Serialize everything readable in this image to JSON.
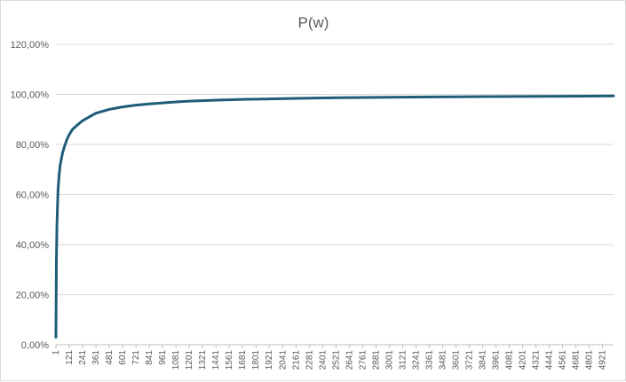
{
  "chart_data": {
    "type": "line",
    "title": "P(w)",
    "xlabel": "",
    "ylabel": "",
    "ylim": [
      0,
      1.2
    ],
    "yticks": [
      "0,00%",
      "20,00%",
      "40,00%",
      "60,00%",
      "80,00%",
      "100,00%",
      "120,00%"
    ],
    "ytick_values": [
      0,
      0.2,
      0.4,
      0.6,
      0.8,
      1.0,
      1.2
    ],
    "xlim": [
      1,
      5020
    ],
    "xticks": [
      "1",
      "121",
      "241",
      "361",
      "481",
      "601",
      "721",
      "841",
      "961",
      "1081",
      "1201",
      "1321",
      "1441",
      "1561",
      "1681",
      "1801",
      "1921",
      "2041",
      "2161",
      "2281",
      "2401",
      "2521",
      "2641",
      "2761",
      "2881",
      "3001",
      "3121",
      "3241",
      "3361",
      "3481",
      "3601",
      "3721",
      "3841",
      "3961",
      "4081",
      "4201",
      "4321",
      "4441",
      "4561",
      "4681",
      "4801",
      "4921"
    ],
    "grid": true,
    "legend": "none",
    "colors": {
      "line": "#1f5c7a",
      "grid": "#d9d9d9"
    },
    "series": [
      {
        "x": [
          1,
          5,
          10,
          20,
          30,
          40,
          60,
          80,
          100,
          121,
          150,
          200,
          241,
          300,
          361,
          481,
          601,
          721,
          841,
          961,
          1081,
          1201,
          1441,
          1681,
          1921,
          2161,
          2401,
          2881,
          3361,
          3841,
          4321,
          4801,
          5020
        ],
        "values": [
          0.03,
          0.33,
          0.48,
          0.62,
          0.68,
          0.72,
          0.765,
          0.795,
          0.82,
          0.84,
          0.86,
          0.88,
          0.895,
          0.91,
          0.925,
          0.94,
          0.95,
          0.957,
          0.962,
          0.966,
          0.97,
          0.973,
          0.977,
          0.98,
          0.982,
          0.984,
          0.986,
          0.988,
          0.99,
          0.991,
          0.992,
          0.993,
          0.994
        ]
      }
    ]
  }
}
